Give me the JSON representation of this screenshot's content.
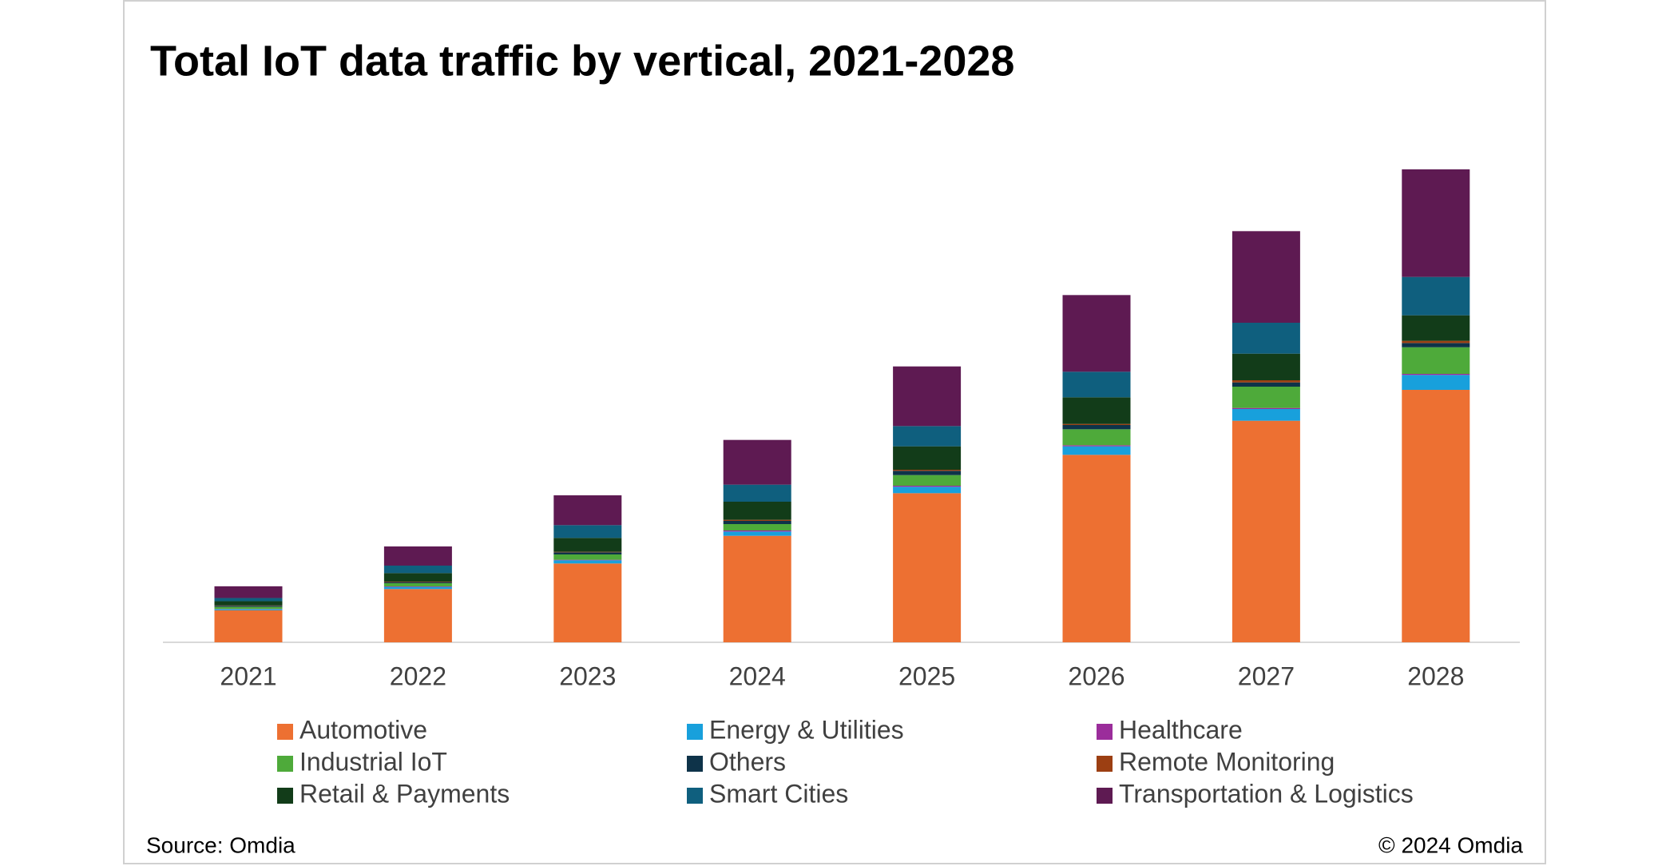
{
  "chart_data": {
    "type": "stacked_bar",
    "title": "Total IoT data traffic by vertical, 2021-2028",
    "categories": [
      "2021",
      "2022",
      "2023",
      "2024",
      "2025",
      "2026",
      "2027",
      "2028"
    ],
    "series": [
      {
        "name": "Automotive",
        "color": "#ed7032",
        "values": [
          30,
          50,
          74,
          100,
          140,
          176,
          208,
          237
        ]
      },
      {
        "name": "Energy & Utilities",
        "color": "#18a0dc",
        "values": [
          1,
          2,
          3,
          4,
          6,
          8,
          11,
          14
        ]
      },
      {
        "name": "Healthcare",
        "color": "#9b2d9b",
        "values": [
          0.3,
          0.5,
          0.5,
          1,
          1,
          1,
          1,
          1
        ]
      },
      {
        "name": "Industrial IoT",
        "color": "#4eaa3a",
        "values": [
          2,
          3,
          5,
          6,
          10,
          15,
          20,
          25
        ]
      },
      {
        "name": "Others",
        "color": "#0e3349",
        "values": [
          1,
          1,
          2,
          3,
          4,
          4,
          4,
          4
        ]
      },
      {
        "name": "Remote Monitoring",
        "color": "#9c3f12",
        "values": [
          0.3,
          0.5,
          0.5,
          1,
          1,
          1,
          2,
          2
        ]
      },
      {
        "name": "Retail & Payments",
        "color": "#123c19",
        "values": [
          4,
          8,
          13,
          17,
          22,
          25,
          25,
          24
        ]
      },
      {
        "name": "Smart Cities",
        "color": "#0f5f7e",
        "values": [
          3,
          7,
          12,
          16,
          19,
          24,
          29,
          36
        ]
      },
      {
        "name": "Transportation & Logistics",
        "color": "#5e1a52",
        "values": [
          11,
          18,
          28,
          42,
          56,
          72,
          86,
          101
        ]
      }
    ],
    "source": "Source: Omdia",
    "copyright": "© 2024 Omdia"
  }
}
